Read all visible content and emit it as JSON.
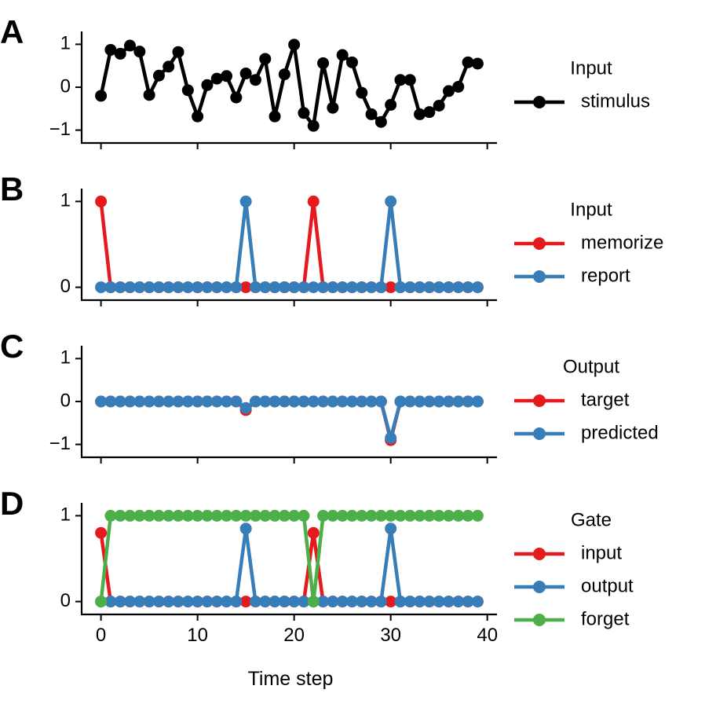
{
  "figure": {
    "xlabel": "Time step"
  },
  "colors": {
    "black": "#000000",
    "red": "#e41a1c",
    "blue": "#377eb8",
    "green": "#4daf4a"
  },
  "chart_data": [
    {
      "type": "line",
      "panel": "A",
      "legend_title": "Input",
      "x": [
        0,
        1,
        2,
        3,
        4,
        5,
        6,
        7,
        8,
        9,
        10,
        11,
        12,
        13,
        14,
        15,
        16,
        17,
        18,
        19,
        20,
        21,
        22,
        23,
        24,
        25,
        26,
        27,
        28,
        29,
        30,
        31,
        32,
        33,
        34,
        35,
        36,
        37,
        38,
        39
      ],
      "xlim": [
        -2,
        41
      ],
      "ylim": [
        -1.3,
        1.3
      ],
      "yticks": [
        -1,
        0,
        1
      ],
      "ytick_labels": [
        "−1",
        "0",
        "1"
      ],
      "xticks": [
        0,
        10,
        20,
        30,
        40
      ],
      "xtick_labels": [
        "0",
        "10",
        "20",
        "30",
        "40"
      ],
      "series": [
        {
          "name": "stimulus",
          "color": "black",
          "values": [
            -0.2,
            0.87,
            0.78,
            0.97,
            0.83,
            -0.18,
            0.27,
            0.48,
            0.82,
            -0.07,
            -0.68,
            0.05,
            0.2,
            0.26,
            -0.24,
            0.32,
            0.17,
            0.66,
            -0.68,
            0.3,
            0.99,
            -0.6,
            -0.9,
            0.56,
            -0.48,
            0.75,
            0.58,
            -0.13,
            -0.63,
            -0.81,
            -0.41,
            0.17,
            0.17,
            -0.63,
            -0.58,
            -0.43,
            -0.09,
            0.01,
            0.58,
            0.55
          ]
        }
      ]
    },
    {
      "type": "line",
      "panel": "B",
      "legend_title": "Input",
      "x": [
        0,
        1,
        2,
        3,
        4,
        5,
        6,
        7,
        8,
        9,
        10,
        11,
        12,
        13,
        14,
        15,
        16,
        17,
        18,
        19,
        20,
        21,
        22,
        23,
        24,
        25,
        26,
        27,
        28,
        29,
        30,
        31,
        32,
        33,
        34,
        35,
        36,
        37,
        38,
        39
      ],
      "xlim": [
        -2,
        41
      ],
      "ylim": [
        -0.15,
        1.15
      ],
      "yticks": [
        0,
        1
      ],
      "ytick_labels": [
        "0",
        "1"
      ],
      "xticks": [
        0,
        10,
        20,
        30,
        40
      ],
      "xtick_labels": [
        "0",
        "10",
        "20",
        "30",
        "40"
      ],
      "series": [
        {
          "name": "memorize",
          "color": "red",
          "values": [
            1,
            0,
            0,
            0,
            0,
            0,
            0,
            0,
            0,
            0,
            0,
            0,
            0,
            0,
            0,
            0,
            0,
            0,
            0,
            0,
            0,
            0,
            1,
            0,
            0,
            0,
            0,
            0,
            0,
            0,
            0,
            0,
            0,
            0,
            0,
            0,
            0,
            0,
            0,
            0
          ]
        },
        {
          "name": "report",
          "color": "blue",
          "values": [
            0,
            0,
            0,
            0,
            0,
            0,
            0,
            0,
            0,
            0,
            0,
            0,
            0,
            0,
            0,
            1,
            0,
            0,
            0,
            0,
            0,
            0,
            0,
            0,
            0,
            0,
            0,
            0,
            0,
            0,
            1,
            0,
            0,
            0,
            0,
            0,
            0,
            0,
            0,
            0
          ]
        }
      ]
    },
    {
      "type": "line",
      "panel": "C",
      "legend_title": "Output",
      "x": [
        0,
        1,
        2,
        3,
        4,
        5,
        6,
        7,
        8,
        9,
        10,
        11,
        12,
        13,
        14,
        15,
        16,
        17,
        18,
        19,
        20,
        21,
        22,
        23,
        24,
        25,
        26,
        27,
        28,
        29,
        30,
        31,
        32,
        33,
        34,
        35,
        36,
        37,
        38,
        39
      ],
      "xlim": [
        -2,
        41
      ],
      "ylim": [
        -1.3,
        1.3
      ],
      "yticks": [
        -1,
        0,
        1
      ],
      "ytick_labels": [
        "−1",
        "0",
        "1"
      ],
      "xticks": [
        0,
        10,
        20,
        30,
        40
      ],
      "xtick_labels": [
        "0",
        "10",
        "20",
        "30",
        "40"
      ],
      "series": [
        {
          "name": "target",
          "color": "red",
          "values": [
            0,
            0,
            0,
            0,
            0,
            0,
            0,
            0,
            0,
            0,
            0,
            0,
            0,
            0,
            0,
            -0.2,
            0,
            0,
            0,
            0,
            0,
            0,
            0,
            0,
            0,
            0,
            0,
            0,
            0,
            0,
            -0.9,
            0,
            0,
            0,
            0,
            0,
            0,
            0,
            0,
            0
          ]
        },
        {
          "name": "predicted",
          "color": "blue",
          "values": [
            0,
            0,
            0,
            0,
            0,
            0,
            0,
            0,
            0,
            0,
            0,
            0,
            0,
            0,
            0,
            -0.15,
            0,
            0,
            0,
            0,
            0,
            0,
            0,
            0,
            0,
            0,
            0,
            0,
            0,
            0,
            -0.85,
            0,
            0,
            0,
            0,
            0,
            0,
            0,
            0,
            0
          ]
        }
      ]
    },
    {
      "type": "line",
      "panel": "D",
      "legend_title": "Gate",
      "x": [
        0,
        1,
        2,
        3,
        4,
        5,
        6,
        7,
        8,
        9,
        10,
        11,
        12,
        13,
        14,
        15,
        16,
        17,
        18,
        19,
        20,
        21,
        22,
        23,
        24,
        25,
        26,
        27,
        28,
        29,
        30,
        31,
        32,
        33,
        34,
        35,
        36,
        37,
        38,
        39
      ],
      "xlim": [
        -2,
        41
      ],
      "ylim": [
        -0.15,
        1.15
      ],
      "yticks": [
        0,
        1
      ],
      "ytick_labels": [
        "0",
        "1"
      ],
      "xticks": [
        0,
        10,
        20,
        30,
        40
      ],
      "xtick_labels": [
        "0",
        "10",
        "20",
        "30",
        "40"
      ],
      "series": [
        {
          "name": "input",
          "color": "red",
          "values": [
            0.8,
            0,
            0,
            0,
            0,
            0,
            0,
            0,
            0,
            0,
            0,
            0,
            0,
            0,
            0,
            0,
            0,
            0,
            0,
            0,
            0,
            0,
            0.8,
            0,
            0,
            0,
            0,
            0,
            0,
            0,
            0,
            0,
            0,
            0,
            0,
            0,
            0,
            0,
            0,
            0
          ]
        },
        {
          "name": "output",
          "color": "blue",
          "values": [
            0,
            0,
            0,
            0,
            0,
            0,
            0,
            0,
            0,
            0,
            0,
            0,
            0,
            0,
            0,
            0.85,
            0,
            0,
            0,
            0,
            0,
            0,
            0,
            0,
            0,
            0,
            0,
            0,
            0,
            0,
            0.85,
            0,
            0,
            0,
            0,
            0,
            0,
            0,
            0,
            0
          ]
        },
        {
          "name": "forget",
          "color": "green",
          "values": [
            0,
            1,
            1,
            1,
            1,
            1,
            1,
            1,
            1,
            1,
            1,
            1,
            1,
            1,
            1,
            1,
            1,
            1,
            1,
            1,
            1,
            1,
            0,
            1,
            1,
            1,
            1,
            1,
            1,
            1,
            1,
            1,
            1,
            1,
            1,
            1,
            1,
            1,
            1,
            1
          ]
        }
      ]
    }
  ]
}
